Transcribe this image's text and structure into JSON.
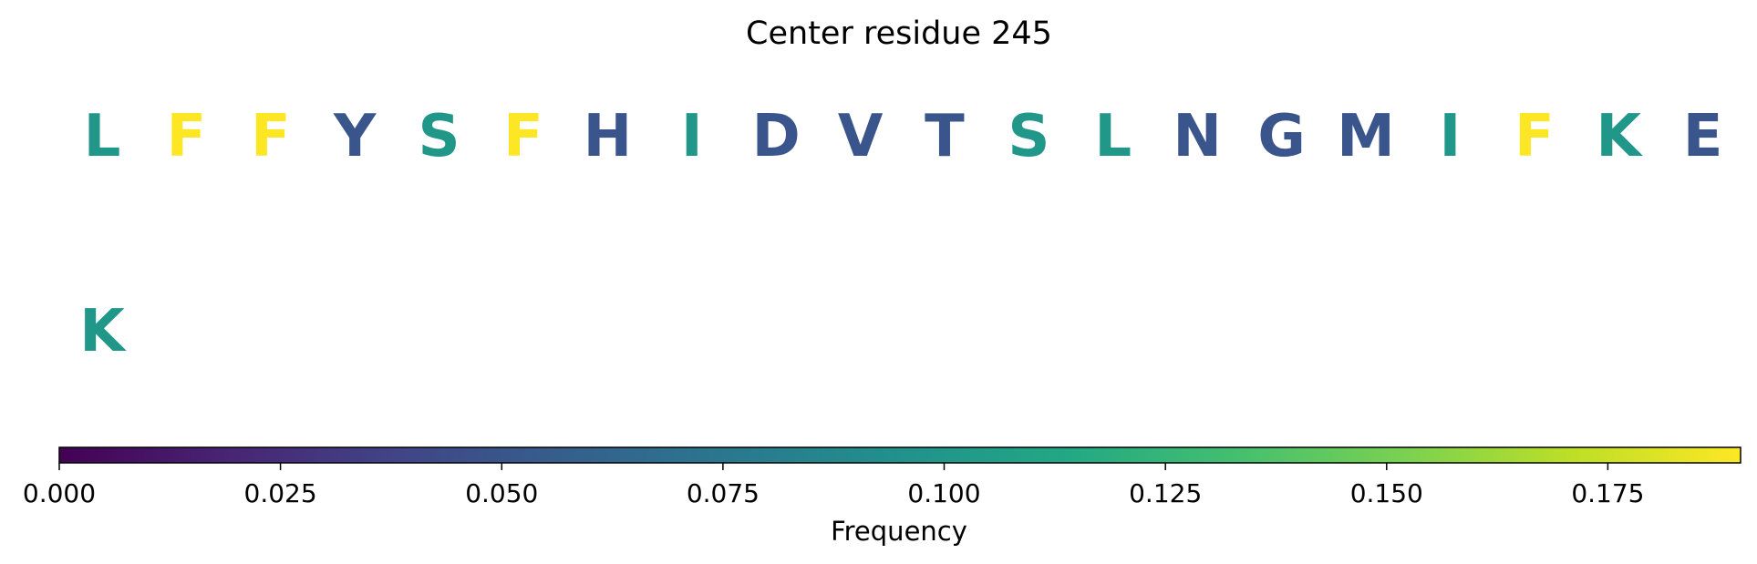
{
  "chart_data": {
    "type": "heatmap",
    "title": "Center residue 245",
    "rows": [
      {
        "letters": [
          "L",
          "F",
          "F",
          "Y",
          "S",
          "F",
          "H",
          "I",
          "D",
          "V",
          "T",
          "S",
          "L",
          "N",
          "G",
          "M",
          "I",
          "F",
          "K",
          "E"
        ],
        "values": [
          0.1,
          0.19,
          0.19,
          0.05,
          0.1,
          0.19,
          0.05,
          0.1,
          0.05,
          0.05,
          0.05,
          0.1,
          0.1,
          0.05,
          0.05,
          0.05,
          0.1,
          0.19,
          0.1,
          0.05
        ]
      },
      {
        "letters": [
          "K"
        ],
        "values": [
          0.1
        ]
      }
    ],
    "colorbar": {
      "label": "Frequency",
      "colormap": "viridis",
      "vmin": 0.0,
      "vmax": 0.19,
      "ticks": [
        0.0,
        0.025,
        0.05,
        0.075,
        0.1,
        0.125,
        0.15,
        0.175
      ],
      "tick_labels": [
        "0.000",
        "0.025",
        "0.050",
        "0.075",
        "0.100",
        "0.125",
        "0.150",
        "0.175"
      ]
    }
  }
}
